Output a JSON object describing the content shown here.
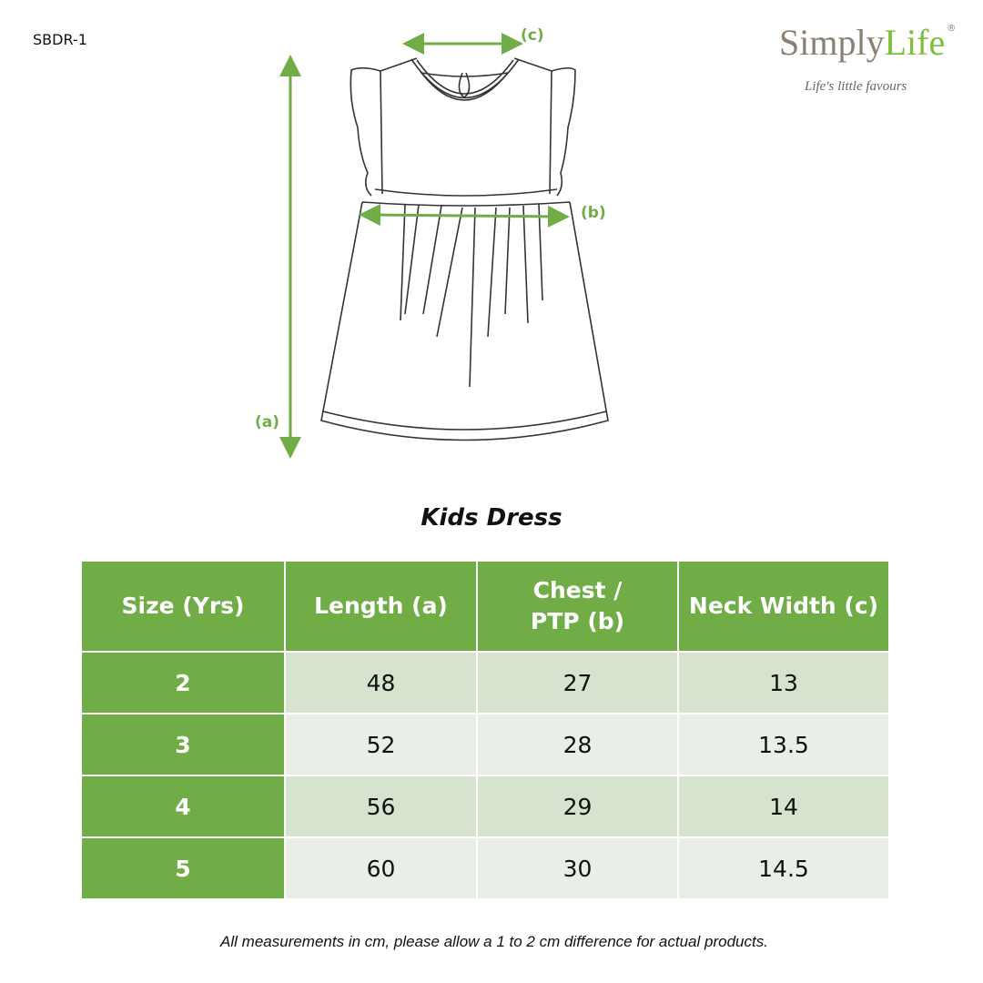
{
  "product_code": "SBDR-1",
  "logo": {
    "brand_part1": "Simply",
    "brand_part2": "Life",
    "registered": "®",
    "tagline": "Life's little favours"
  },
  "colors": {
    "accent": "#70ad47",
    "row_dark": "#d5e3cf",
    "row_light": "#e9efe6"
  },
  "diagram": {
    "label_a": "(a)",
    "label_b": "(b)",
    "label_c": "(c)"
  },
  "title": "Kids Dress",
  "table": {
    "headers": [
      "Size (Yrs)",
      "Length (a)",
      "Chest / PTP (b)",
      "Neck Width (c)"
    ],
    "rows": [
      [
        "2",
        "48",
        "27",
        "13"
      ],
      [
        "3",
        "52",
        "28",
        "13.5"
      ],
      [
        "4",
        "56",
        "29",
        "14"
      ],
      [
        "5",
        "60",
        "30",
        "14.5"
      ]
    ]
  },
  "note": "All measurements in cm, please allow a 1 to 2 cm difference for actual products."
}
